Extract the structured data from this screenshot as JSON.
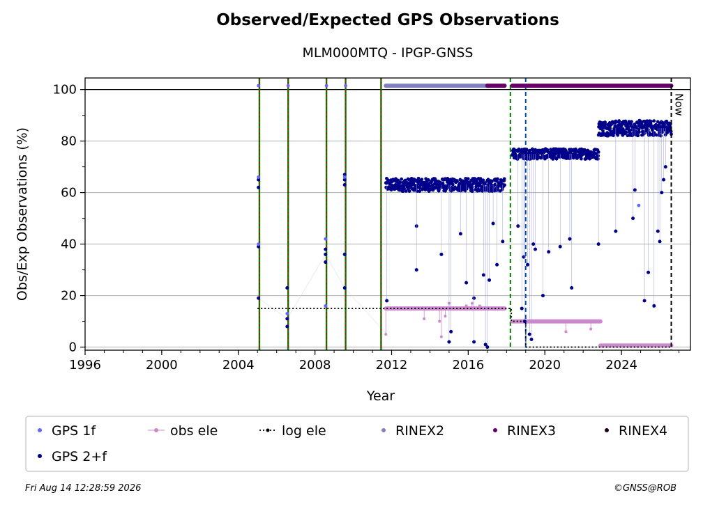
{
  "chart_data": {
    "type": "scatter",
    "title": "Observed/Expected GPS Observations",
    "subtitle": "MLM000MTQ - IPGP-GNSS",
    "xlabel": "Year",
    "ylabel": "Obs/Exp Observations (%)",
    "xlim": [
      1996,
      2027.6
    ],
    "ylim": [
      0,
      103
    ],
    "xticks": [
      1996,
      2000,
      2004,
      2008,
      2012,
      2016,
      2020,
      2024
    ],
    "yticks": [
      0,
      20,
      40,
      60,
      80,
      100
    ],
    "grid": "horizontal",
    "now_label": "Now",
    "now_x": 2026.6,
    "legend_position": "bottom",
    "legend": [
      {
        "label": "GPS 1f",
        "color": "#6666ff",
        "kind": "dot"
      },
      {
        "label": "obs ele",
        "color": "#cc88cc",
        "kind": "line-dot"
      },
      {
        "label": "log ele",
        "color": "#000000",
        "kind": "dotted"
      },
      {
        "label": "RINEX2",
        "color": "#8080c0",
        "kind": "dot"
      },
      {
        "label": "RINEX3",
        "color": "#660066",
        "kind": "dot"
      },
      {
        "label": "RINEX4",
        "color": "#220022",
        "kind": "dot"
      },
      {
        "label": "GPS 2+f",
        "color": "#00008b",
        "kind": "dot"
      }
    ],
    "event_lines": {
      "green_red": [
        2005.1,
        2006.6,
        2008.6,
        2009.6,
        2011.45
      ],
      "green": [
        2018.2
      ],
      "blue": [
        2019.0
      ]
    },
    "series": [
      {
        "name": "GPS 2+f",
        "color": "#00008b",
        "segments": [
          {
            "x0": 2011.7,
            "x1": 2017.9,
            "y": 63,
            "jitter": 2.5
          },
          {
            "x0": 2018.3,
            "x1": 2022.8,
            "y": 75,
            "jitter": 2
          },
          {
            "x0": 2022.8,
            "x1": 2026.6,
            "y": 85,
            "jitter": 3
          }
        ],
        "outliers": [
          [
            2005.05,
            19
          ],
          [
            2005.05,
            62
          ],
          [
            2005.05,
            65
          ],
          [
            2005.05,
            39
          ],
          [
            2006.55,
            23
          ],
          [
            2006.55,
            11
          ],
          [
            2006.55,
            8
          ],
          [
            2008.55,
            33
          ],
          [
            2008.55,
            36
          ],
          [
            2008.55,
            38
          ],
          [
            2009.55,
            23
          ],
          [
            2009.55,
            36
          ],
          [
            2009.55,
            63
          ],
          [
            2009.55,
            65
          ],
          [
            2009.55,
            67
          ],
          [
            2011.75,
            18
          ],
          [
            2013.3,
            47
          ],
          [
            2013.3,
            30
          ],
          [
            2014.6,
            36
          ],
          [
            2015.1,
            6
          ],
          [
            2015.0,
            2
          ],
          [
            2015.6,
            44
          ],
          [
            2015.9,
            25
          ],
          [
            2016.3,
            19
          ],
          [
            2016.3,
            2
          ],
          [
            2016.8,
            28
          ],
          [
            2016.9,
            1
          ],
          [
            2017.0,
            0
          ],
          [
            2017.1,
            26
          ],
          [
            2017.3,
            48
          ],
          [
            2017.5,
            32
          ],
          [
            2017.8,
            41
          ],
          [
            2018.6,
            47
          ],
          [
            2018.8,
            15
          ],
          [
            2018.9,
            35
          ],
          [
            2018.95,
            10
          ],
          [
            2019.1,
            32
          ],
          [
            2019.2,
            5
          ],
          [
            2019.3,
            3
          ],
          [
            2019.4,
            40
          ],
          [
            2019.5,
            38
          ],
          [
            2019.9,
            20
          ],
          [
            2020.2,
            37
          ],
          [
            2020.8,
            39
          ],
          [
            2021.3,
            42
          ],
          [
            2021.4,
            23
          ],
          [
            2022.8,
            40
          ],
          [
            2023.7,
            45
          ],
          [
            2024.6,
            50
          ],
          [
            2024.7,
            61
          ],
          [
            2025.2,
            18
          ],
          [
            2025.4,
            29
          ],
          [
            2025.7,
            16
          ],
          [
            2025.9,
            45
          ],
          [
            2026.0,
            41
          ],
          [
            2026.1,
            60
          ],
          [
            2026.2,
            65
          ],
          [
            2026.3,
            70
          ]
        ]
      },
      {
        "name": "GPS 1f",
        "color": "#6666ff",
        "points": [
          [
            2005.05,
            66
          ],
          [
            2005.05,
            40
          ],
          [
            2008.55,
            42
          ],
          [
            2008.55,
            16
          ],
          [
            2009.55,
            66
          ],
          [
            2006.55,
            13
          ],
          [
            2005.05,
            101.5
          ],
          [
            2006.6,
            101.5
          ],
          [
            2008.6,
            101.5
          ],
          [
            2009.6,
            101.5
          ],
          [
            2024.9,
            55
          ]
        ]
      },
      {
        "name": "obs ele",
        "color": "#cc88cc",
        "segments": [
          {
            "x0": 2011.7,
            "x1": 2017.9,
            "y": 15
          },
          {
            "x0": 2018.3,
            "x1": 2022.9,
            "y": 10
          },
          {
            "x0": 2022.9,
            "x1": 2026.6,
            "y": 0.6
          }
        ],
        "outliers": [
          [
            2011.7,
            5
          ],
          [
            2015.0,
            17
          ],
          [
            2015.9,
            16
          ],
          [
            2014.8,
            12
          ],
          [
            2014.6,
            4
          ],
          [
            2014.5,
            10
          ],
          [
            2013.7,
            11
          ],
          [
            2016.2,
            17
          ],
          [
            2021.1,
            6
          ],
          [
            2022.4,
            7
          ],
          [
            2016.6,
            16
          ]
        ]
      },
      {
        "name": "log ele",
        "color": "#000000",
        "steps": [
          [
            2005.0,
            15
          ],
          [
            2018.25,
            15
          ],
          [
            2018.25,
            10
          ],
          [
            2019.0,
            10
          ],
          [
            2019.0,
            0
          ],
          [
            2026.6,
            0
          ]
        ]
      },
      {
        "name": "RINEX2",
        "color": "#8080c0",
        "range": [
          2011.7,
          2017.0
        ],
        "y": 101.5
      },
      {
        "name": "RINEX3",
        "color": "#660066",
        "ranges": [
          [
            2017.0,
            2017.9
          ],
          [
            2018.3,
            2026.6
          ]
        ],
        "y": 101.5
      }
    ]
  },
  "footer": {
    "timestamp": "Fri Aug 14 12:28:59 2026",
    "credit": "©GNSS@ROB"
  }
}
